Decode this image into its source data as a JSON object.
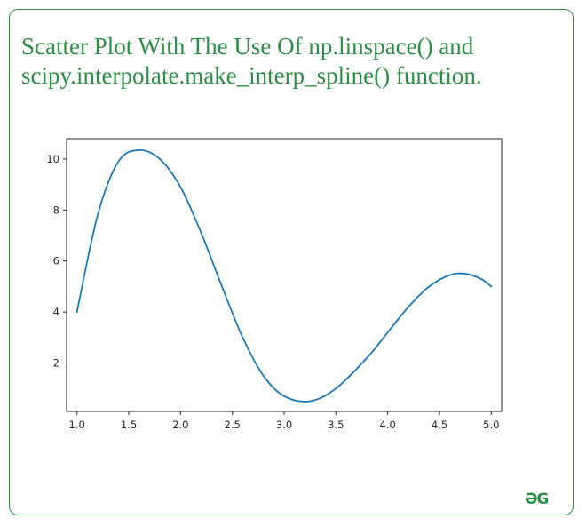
{
  "caption": {
    "line1": "Scatter Plot With The Use Of np.linspace() and",
    "line2": "scipy.interpolate.make_interp_spline() function."
  },
  "logo_text": "ƏG",
  "colors": {
    "accent": "#2f8d46",
    "line": "#1f77b4",
    "axis": "#262626"
  },
  "chart_data": {
    "type": "line",
    "x": [
      1.0,
      1.2,
      1.4,
      1.6,
      1.8,
      2.0,
      2.2,
      2.4,
      2.6,
      2.8,
      3.0,
      3.25,
      3.5,
      3.8,
      4.0,
      4.2,
      4.4,
      4.6,
      4.75,
      4.9,
      5.0
    ],
    "y": [
      4.0,
      7.8,
      9.9,
      10.35,
      10.0,
      8.9,
      7.1,
      5.0,
      3.0,
      1.5,
      0.7,
      0.5,
      1.0,
      2.2,
      3.2,
      4.2,
      5.0,
      5.45,
      5.5,
      5.3,
      5.0
    ],
    "xlim": [
      0.9,
      5.1
    ],
    "ylim": [
      0.1,
      10.8
    ],
    "xticks": [
      1.0,
      1.5,
      2.0,
      2.5,
      3.0,
      3.5,
      4.0,
      4.5,
      5.0
    ],
    "xtick_labels": [
      "1.0",
      "1.5",
      "2.0",
      "2.5",
      "3.0",
      "3.5",
      "4.0",
      "4.5",
      "5.0"
    ],
    "yticks": [
      2,
      4,
      6,
      8,
      10
    ],
    "ytick_labels": [
      "2",
      "4",
      "6",
      "8",
      "10"
    ],
    "title": "",
    "xlabel": "",
    "ylabel": "",
    "grid": false,
    "legend": false
  }
}
